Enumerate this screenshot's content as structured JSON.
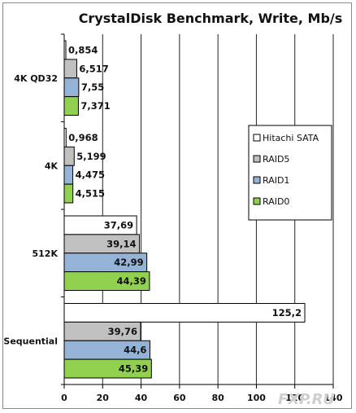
{
  "chart_data": {
    "type": "bar",
    "orientation": "horizontal",
    "title": "CrystalDisk Benchmark, Write, Mb/s",
    "xlabel": "",
    "ylabel": "",
    "xlim": [
      0,
      140
    ],
    "x_ticks": [
      0,
      20,
      40,
      60,
      80,
      100,
      120,
      140
    ],
    "grid": true,
    "legend_position": "right",
    "categories": [
      "4K QD32",
      "4K",
      "512K",
      "Sequential"
    ],
    "series": [
      {
        "name": "Hitachi SATA",
        "color": "#ffffff",
        "values": [
          0.854,
          0.968,
          37.69,
          125.2
        ],
        "labels": [
          "0,854",
          "0,968",
          "37,69",
          "125,2"
        ]
      },
      {
        "name": "RAID5",
        "color": "#c0c0c0",
        "values": [
          6.517,
          5.199,
          39.14,
          39.76
        ],
        "labels": [
          "6,517",
          "5,199",
          "39,14",
          "39,76"
        ]
      },
      {
        "name": "RAID1",
        "color": "#95b3d7",
        "values": [
          7.55,
          4.475,
          42.99,
          44.6
        ],
        "labels": [
          "7,55",
          "4,475",
          "42,99",
          "44,6"
        ]
      },
      {
        "name": "RAID0",
        "color": "#92d050",
        "values": [
          7.371,
          4.515,
          44.39,
          45.39
        ],
        "labels": [
          "7,371",
          "4,515",
          "44,39",
          "45,39"
        ]
      }
    ]
  },
  "watermark": "FXP.RU"
}
